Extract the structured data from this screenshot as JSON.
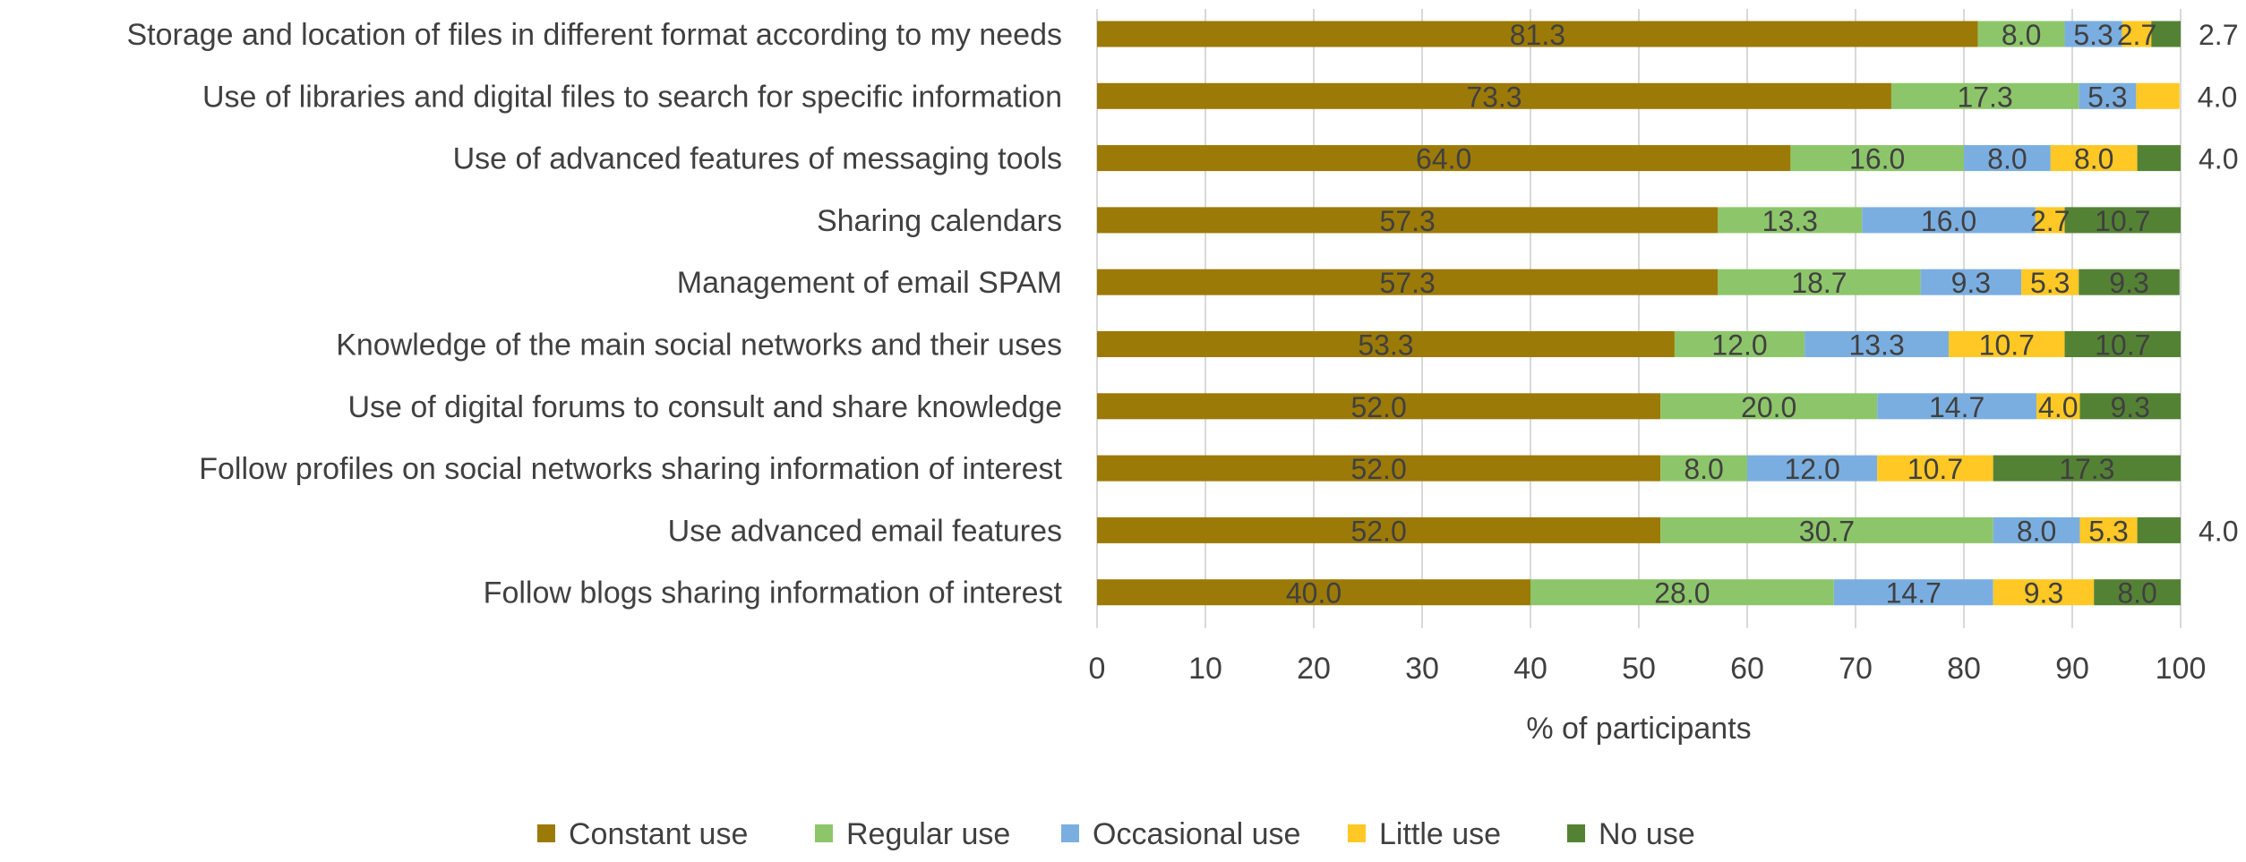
{
  "chart_data": {
    "type": "bar",
    "orientation": "horizontal",
    "stacked": true,
    "xlabel": "% of participants",
    "ylabel": "",
    "xlim": [
      0,
      100
    ],
    "xticks": [
      0,
      10,
      20,
      30,
      40,
      50,
      60,
      70,
      80,
      90,
      100
    ],
    "grid": "vertical",
    "legend_position": "bottom",
    "categories": [
      "Storage and location of files in different format according to my needs",
      "Use of libraries and digital files to search for specific information",
      "Use of advanced features of messaging tools",
      "Sharing calendars",
      "Management of email SPAM",
      "Knowledge of the main social networks and their uses",
      "Use of digital forums to consult and share knowledge",
      "Follow profiles on social networks sharing information of interest",
      "Use advanced email features",
      "Follow blogs sharing information of interest"
    ],
    "series": [
      {
        "name": "Constant use",
        "color": "#9C7A07",
        "values": [
          81.3,
          73.3,
          64.0,
          57.3,
          57.3,
          53.3,
          52.0,
          52.0,
          52.0,
          40.0
        ]
      },
      {
        "name": "Regular use",
        "color": "#8DC66A",
        "values": [
          8.0,
          17.3,
          16.0,
          13.3,
          18.7,
          12.0,
          20.0,
          8.0,
          30.7,
          28.0
        ]
      },
      {
        "name": "Occasional use",
        "color": "#7BAEE0",
        "values": [
          5.3,
          5.3,
          8.0,
          16.0,
          9.3,
          13.3,
          14.7,
          12.0,
          8.0,
          14.7
        ]
      },
      {
        "name": "Little use",
        "color": "#FFC824",
        "values": [
          2.7,
          4.0,
          8.0,
          2.7,
          5.3,
          10.7,
          4.0,
          10.7,
          5.3,
          9.3
        ]
      },
      {
        "name": "No use",
        "color": "#548235",
        "values": [
          2.7,
          0,
          4.0,
          10.7,
          9.3,
          10.7,
          9.3,
          17.3,
          4.0,
          8.0
        ]
      }
    ],
    "labels": [
      [
        "81.3",
        "8.0",
        "5.3",
        "2.7",
        "2.7"
      ],
      [
        "73.3",
        "17.3",
        "5.3",
        "4.0",
        ""
      ],
      [
        "64.0",
        "16.0",
        "8.0",
        "8.0",
        "4.0"
      ],
      [
        "57.3",
        "13.3",
        "16.0",
        "2.7",
        "10.7"
      ],
      [
        "57.3",
        "18.7",
        "9.3",
        "5.3",
        "9.3"
      ],
      [
        "53.3",
        "12.0",
        "13.3",
        "10.7",
        "10.7"
      ],
      [
        "52.0",
        "20.0",
        "14.7",
        "4.0",
        "9.3"
      ],
      [
        "52.0",
        "8.0",
        "12.0",
        "10.7",
        "17.3"
      ],
      [
        "52.0",
        "30.7",
        "8.0",
        "5.3",
        "4.0"
      ],
      [
        "40.0",
        "28.0",
        "14.7",
        "9.3",
        "8.0"
      ]
    ]
  }
}
